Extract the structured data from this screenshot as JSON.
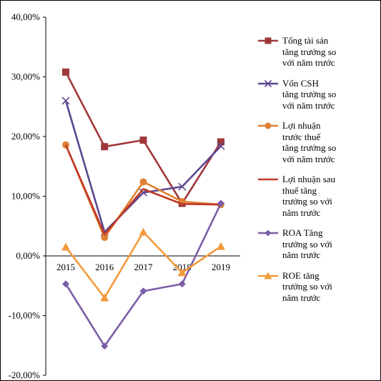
{
  "chart_data": {
    "type": "line",
    "categories": [
      "2015",
      "2016",
      "2017",
      "2018",
      "2019"
    ],
    "y_ticks": [
      "40,00%",
      "30,00%",
      "20,00%",
      "10,00%",
      "0,00%",
      "-10,00%",
      "-20,00%"
    ],
    "ylim": [
      -20,
      40
    ],
    "y_unit": "percent",
    "grid": false,
    "legend_position": "right",
    "series": [
      {
        "name": "Tổng tài sản tăng trưởng so với năm trước",
        "color": "#A0373A",
        "marker": "square",
        "values": [
          30.8,
          18.3,
          19.4,
          8.8,
          19.1
        ]
      },
      {
        "name": "Vốn CSH tăng trưởng so với năm trước",
        "color": "#5B4691",
        "marker": "x",
        "values": [
          26.0,
          4.0,
          10.6,
          11.6,
          18.4
        ]
      },
      {
        "name": "Lợi nhuận trước thuế tăng trưởng so với năm trước",
        "color": "#DE8133",
        "marker": "circle",
        "values": [
          18.6,
          3.1,
          12.4,
          9.1,
          8.6
        ]
      },
      {
        "name": "Lợi nhuận sau thuế tăng trưởng so với năm trước",
        "color": "#C0392B",
        "marker": "none",
        "values": [
          18.6,
          3.6,
          11.2,
          8.7,
          8.6
        ]
      },
      {
        "name": "ROA Tăng trưởng so với năm trước",
        "color": "#7B5EA7",
        "marker": "diamond",
        "values": [
          -4.7,
          -15.1,
          -5.9,
          -4.7,
          8.8
        ]
      },
      {
        "name": "ROE tăng trưởng so với năm trước",
        "color": "#F39A3C",
        "marker": "triangle",
        "values": [
          1.5,
          -7.0,
          4.0,
          -2.8,
          1.6
        ]
      }
    ]
  },
  "legend_lines": [
    "Tổng tài sản\ntăng trưởng so\nvới năm trước",
    "Vốn CSH\ntăng trưởng so\nvới năm trước",
    "Lợi nhuận\ntrước thuế\ntăng trưởng so\nvới năm trước",
    "Lợi nhuận sau\nthuế tăng\ntrưởng so với\nnăm trước",
    "ROA Tăng\ntrưởng so với\nnăm trước",
    "ROE tăng\ntrưởng so với\nnăm trước"
  ]
}
